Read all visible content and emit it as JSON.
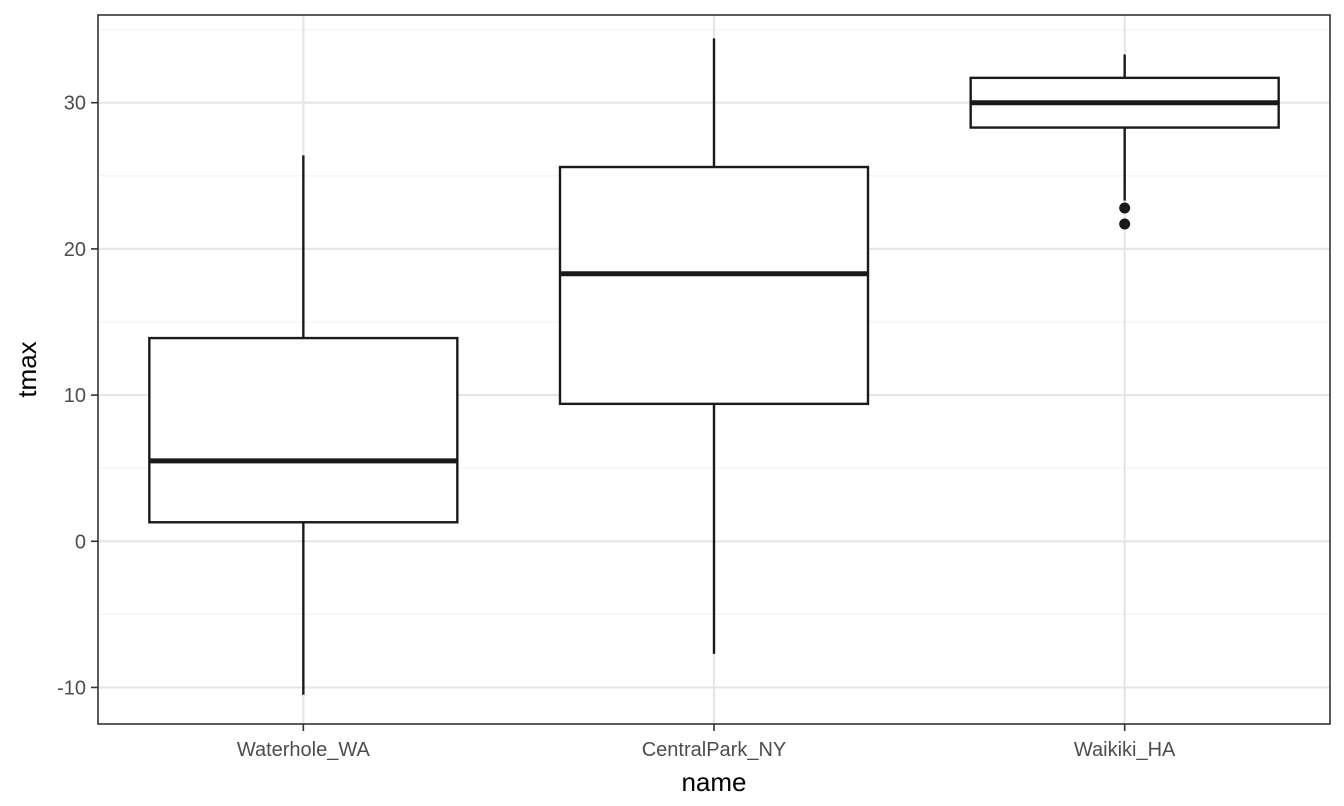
{
  "chart_data": {
    "type": "boxplot",
    "xlabel": "name",
    "ylabel": "tmax",
    "categories": [
      "Waterhole_WA",
      "CentralPark_NY",
      "Waikiki_HA"
    ],
    "ylim": [
      -12.5,
      36
    ],
    "yticks": [
      -10,
      0,
      10,
      20,
      30
    ],
    "grid": true,
    "boxes": [
      {
        "category": "Waterhole_WA",
        "whisker_low": -10.5,
        "q1": 1.3,
        "median": 5.5,
        "q3": 13.9,
        "whisker_high": 26.4,
        "outliers": []
      },
      {
        "category": "CentralPark_NY",
        "whisker_low": -7.7,
        "q1": 9.4,
        "median": 18.3,
        "q3": 25.6,
        "whisker_high": 34.4,
        "outliers": []
      },
      {
        "category": "Waikiki_HA",
        "whisker_low": 23.3,
        "q1": 28.3,
        "median": 30.0,
        "q3": 31.7,
        "whisker_high": 33.3,
        "outliers": [
          22.8,
          21.7
        ]
      }
    ],
    "colors": {
      "box_line": "#1a1a1a",
      "grid_major": "#e6e6e6",
      "grid_minor": "#f2f2f2",
      "panel_border": "#333333",
      "background": "#ffffff"
    }
  }
}
